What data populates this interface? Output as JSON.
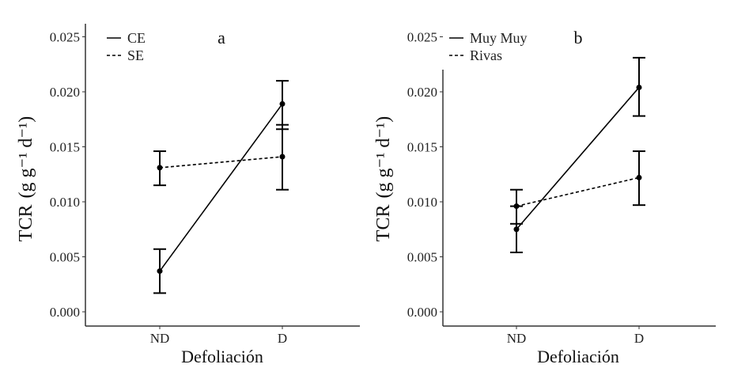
{
  "chart_data": [
    {
      "type": "line",
      "panel_label": "a",
      "xlabel": "Defoliación",
      "ylabel": "TCR",
      "ylabel_units": "(g g⁻¹ d⁻¹)",
      "categories": [
        "ND",
        "D"
      ],
      "ylim": [
        0,
        0.025
      ],
      "yticks": [
        "0.000",
        "0.005",
        "0.010",
        "0.015",
        "0.020",
        "0.025"
      ],
      "legend_position": "top-left",
      "grid": false,
      "series": [
        {
          "name": "CE",
          "dash": "solid",
          "values": [
            0.0037,
            0.0189
          ],
          "lower": [
            0.0017,
            0.0166
          ],
          "upper": [
            0.0057,
            0.021
          ]
        },
        {
          "name": "SE",
          "dash": "dashed",
          "values": [
            0.0131,
            0.0141
          ],
          "lower": [
            0.0115,
            0.0111
          ],
          "upper": [
            0.0146,
            0.017
          ]
        }
      ]
    },
    {
      "type": "line",
      "panel_label": "b",
      "xlabel": "Defoliación",
      "ylabel": "TCR",
      "ylabel_units": "(g g⁻¹ d⁻¹)",
      "categories": [
        "ND",
        "D"
      ],
      "ylim": [
        0,
        0.025
      ],
      "yticks": [
        "0.000",
        "0.005",
        "0.010",
        "0.015",
        "0.020",
        "0.025"
      ],
      "legend_position": "top-left",
      "grid": false,
      "series": [
        {
          "name": "Muy Muy",
          "dash": "solid",
          "values": [
            0.0075,
            0.0204
          ],
          "lower": [
            0.0054,
            0.0178
          ],
          "upper": [
            0.0096,
            0.0231
          ]
        },
        {
          "name": "Rivas",
          "dash": "dashed",
          "values": [
            0.0096,
            0.0122
          ],
          "lower": [
            0.008,
            0.0097
          ],
          "upper": [
            0.0111,
            0.0146
          ]
        }
      ]
    }
  ]
}
